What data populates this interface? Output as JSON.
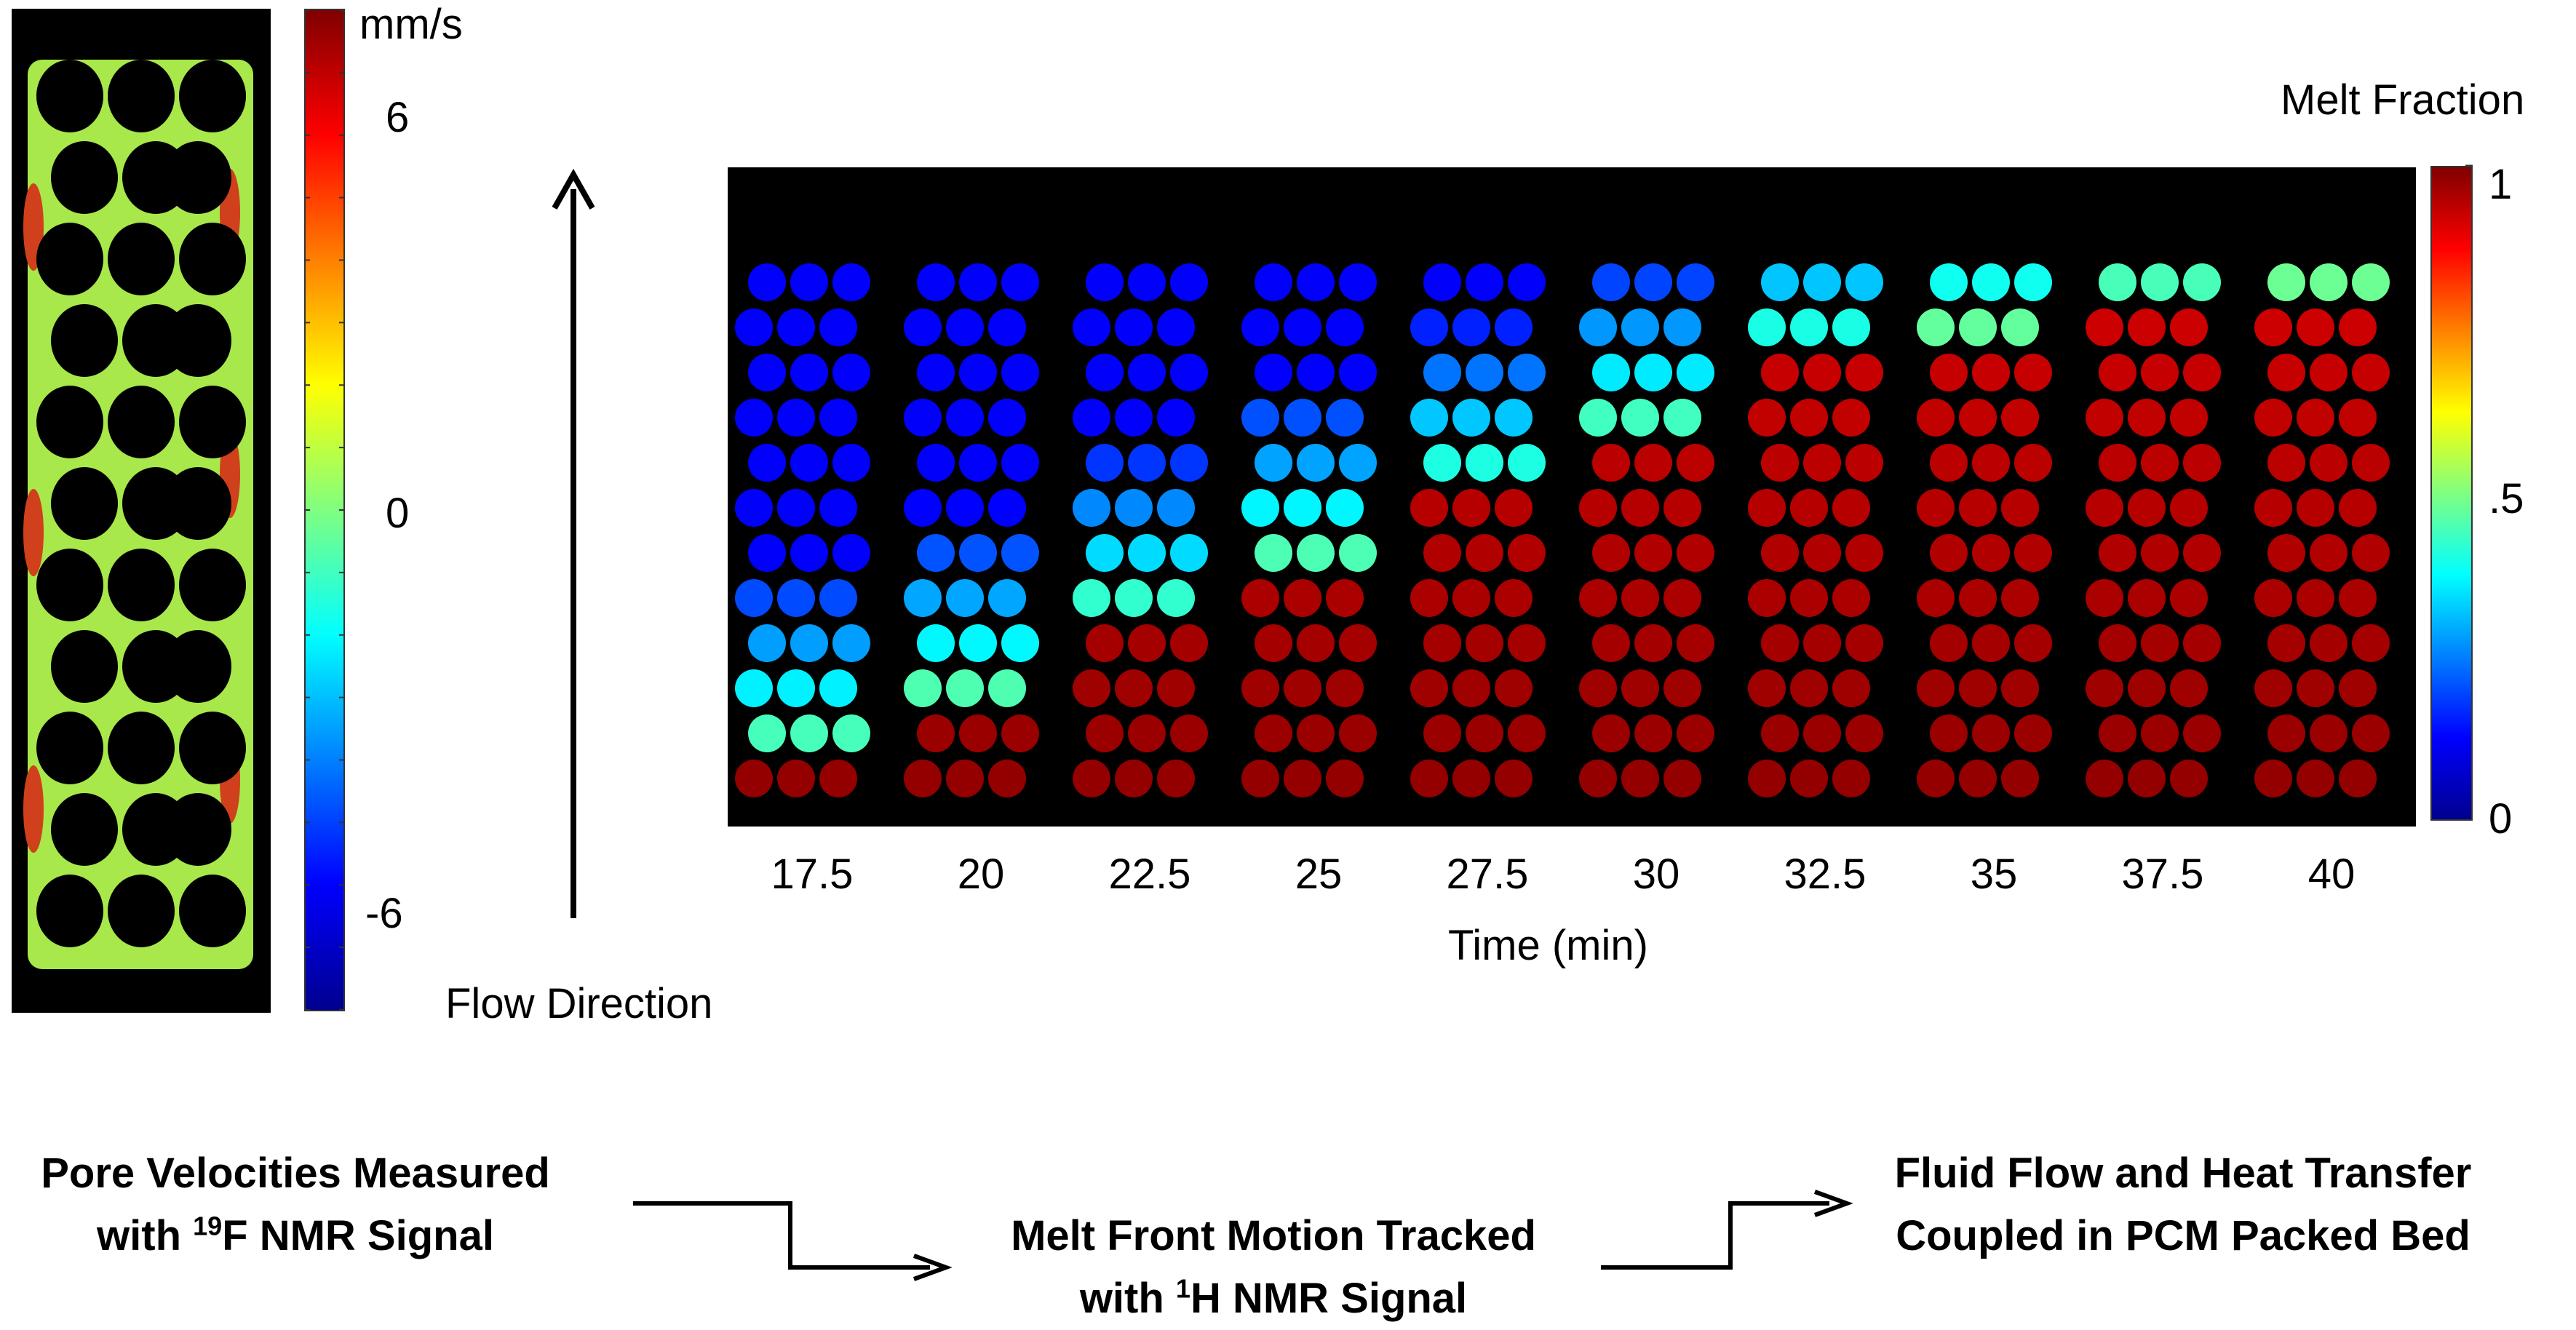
{
  "velocity_colorbar": {
    "unit": "mm/s",
    "ticks": [
      "6",
      "0",
      "-6"
    ]
  },
  "flow": {
    "label": "Flow Direction"
  },
  "melt_colorbar": {
    "title": "Melt Fraction",
    "ticks": [
      "1",
      ".5",
      "0"
    ]
  },
  "time_axis": {
    "label": "Time (min)",
    "ticks": [
      "17.5",
      "20",
      "22.5",
      "25",
      "27.5",
      "30",
      "32.5",
      "35",
      "37.5",
      "40"
    ]
  },
  "frames": [
    {
      "time": "17.5",
      "melt_front": 0.05
    },
    {
      "time": "20",
      "melt_front": 0.15
    },
    {
      "time": "22.5",
      "melt_front": 0.3
    },
    {
      "time": "25",
      "melt_front": 0.42
    },
    {
      "time": "27.5",
      "melt_front": 0.55
    },
    {
      "time": "30",
      "melt_front": 0.68
    },
    {
      "time": "32.5",
      "melt_front": 0.82
    },
    {
      "time": "35",
      "melt_front": 0.9
    },
    {
      "time": "37.5",
      "melt_front": 0.96
    },
    {
      "time": "40",
      "melt_front": 1.0
    }
  ],
  "steps": {
    "step1": {
      "line1": "Pore Velocities Measured",
      "line2_pre": "with ",
      "sup": "19",
      "line2_post": "F NMR Signal"
    },
    "step2": {
      "line1": "Melt Front Motion Tracked",
      "line2_pre": "with ",
      "sup": "1",
      "line2_post": "H NMR Signal"
    },
    "step3": {
      "line1": "Fluid Flow and Heat Transfer",
      "line2": "Coupled in PCM Packed Bed"
    }
  },
  "colors": {
    "jet_low": "#00008f",
    "jet_mid": "#80ff80",
    "jet_high": "#800000",
    "velocity_body": "#a8e84a"
  }
}
